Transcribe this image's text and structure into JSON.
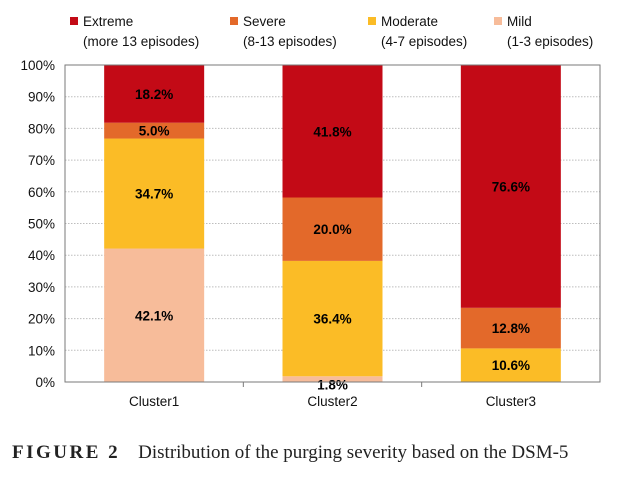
{
  "chart_data": {
    "type": "bar",
    "stacked": true,
    "normalized_percent": true,
    "categories": [
      "Cluster1",
      "Cluster2",
      "Cluster3"
    ],
    "series": [
      {
        "name": "Mild",
        "name_line2": "(1-3 episodes)",
        "color": "#f7bc9a",
        "values": [
          42.1,
          1.8,
          0.0
        ],
        "labels": [
          "42.1%",
          "1.8%",
          ""
        ]
      },
      {
        "name": "Moderate",
        "name_line2": "(4-7 episodes)",
        "color": "#fbbc26",
        "values": [
          34.7,
          36.4,
          10.6
        ],
        "labels": [
          "34.7%",
          "36.4%",
          "10.6%"
        ]
      },
      {
        "name": "Severe",
        "name_line2": "(8-13 episodes)",
        "color": "#e3692a",
        "values": [
          5.0,
          20.0,
          12.8
        ],
        "labels": [
          "5.0%",
          "20.0%",
          "12.8%"
        ]
      },
      {
        "name": "Extreme",
        "name_line2": "(more 13 episodes)",
        "color": "#c30a16",
        "values": [
          18.2,
          41.8,
          76.6
        ],
        "labels": [
          "18.2%",
          "41.8%",
          "76.6%"
        ]
      }
    ],
    "legend_order": [
      "Extreme",
      "Severe",
      "Moderate",
      "Mild"
    ],
    "ylim": [
      0,
      100
    ],
    "yticks": [
      "0%",
      "10%",
      "20%",
      "30%",
      "40%",
      "50%",
      "60%",
      "70%",
      "80%",
      "90%",
      "100%"
    ],
    "grid": true,
    "legend_position": "top"
  },
  "caption": {
    "label": "FIGURE 2",
    "text": "Distribution of the purging severity based on the DSM-5"
  }
}
